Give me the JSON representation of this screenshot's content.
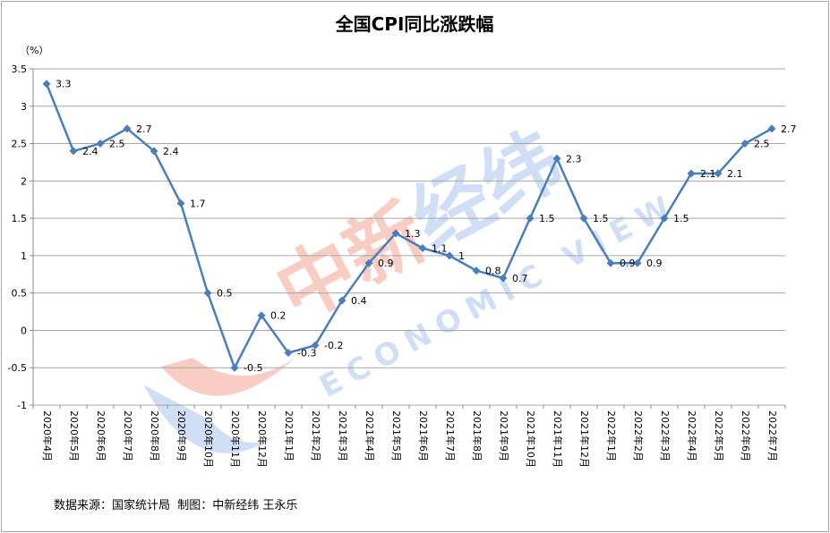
{
  "chart_data": {
    "type": "line",
    "title": "全国CPI同比涨跌幅",
    "unit_label": "（%）",
    "categories": [
      "2020年4月",
      "2020年5月",
      "2020年6月",
      "2020年7月",
      "2020年8月",
      "2020年9月",
      "2020年10月",
      "2020年11月",
      "2020年12月",
      "2021年1月",
      "2021年2月",
      "2021年3月",
      "2021年4月",
      "2021年5月",
      "2021年6月",
      "2021年7月",
      "2021年8月",
      "2021年9月",
      "2021年10月",
      "2021年11月",
      "2021年12月",
      "2022年1月",
      "2022年2月",
      "2022年3月",
      "2022年4月",
      "2022年5月",
      "2022年6月",
      "2022年7月"
    ],
    "values": [
      3.3,
      2.4,
      2.5,
      2.7,
      2.4,
      1.7,
      0.5,
      -0.5,
      0.2,
      -0.3,
      -0.2,
      0.4,
      0.9,
      1.3,
      1.1,
      1,
      0.8,
      0.7,
      1.5,
      2.3,
      1.5,
      0.9,
      0.9,
      1.5,
      2.1,
      2.1,
      2.5,
      2.7
    ],
    "ylim": [
      -1,
      3.5
    ],
    "yticks": [
      -1,
      -0.5,
      0,
      0.5,
      1,
      1.5,
      2,
      2.5,
      3,
      3.5
    ],
    "grid": true,
    "legend": "none",
    "line_color": "#4a7ebb"
  },
  "source": "数据来源：国家统计局  制图：中新经纬 王永乐",
  "watermark": {
    "chinese": "中新经纬",
    "english": "ECONOMIC VIEW",
    "red": "#f4a593",
    "blue": "#a9c4ee"
  }
}
